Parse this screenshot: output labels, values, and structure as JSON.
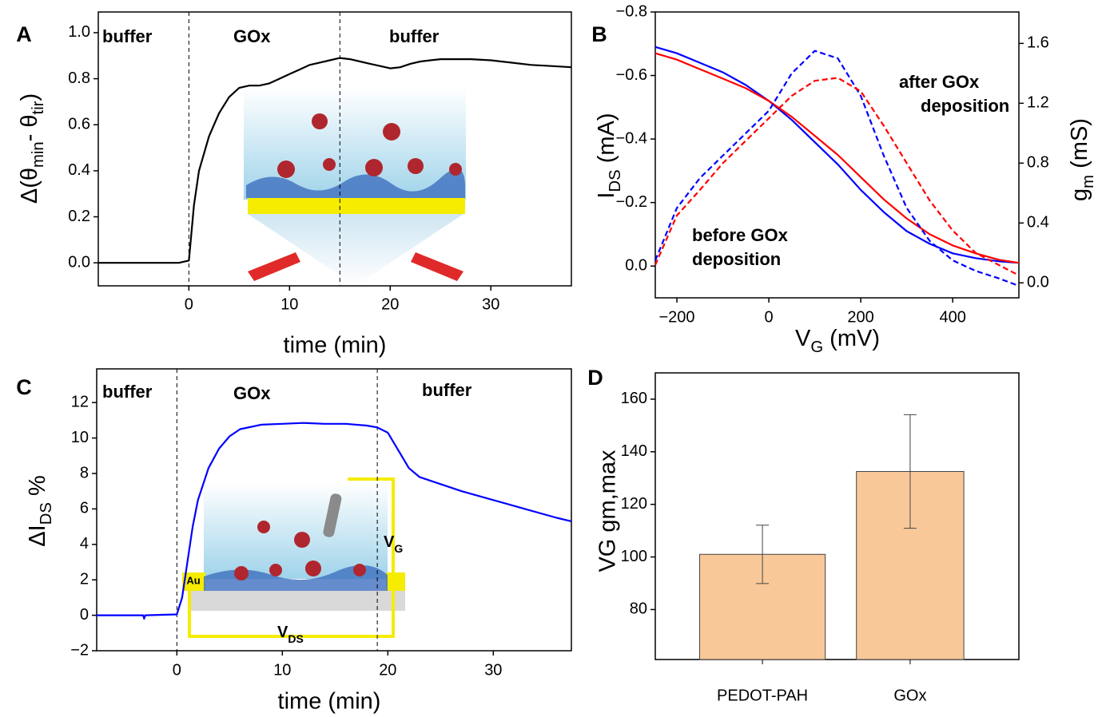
{
  "chart_data": [
    {
      "type": "line",
      "label": "A",
      "xlabel": "time (min)",
      "ylabel": [
        "Δ(θ",
        "min",
        "- θ",
        "tir",
        ")"
      ],
      "x": [
        -9,
        -6,
        -3,
        -1,
        0,
        0.5,
        1,
        2,
        3,
        4,
        5,
        6,
        7,
        8,
        9,
        10,
        11,
        12,
        13,
        14,
        15,
        16,
        17,
        18,
        19,
        20,
        21,
        22,
        23,
        24,
        25,
        26,
        27,
        28,
        30,
        32,
        34,
        36,
        38
      ],
      "series": [
        {
          "color": "#000000",
          "values": [
            0,
            0,
            0,
            0,
            0.01,
            0.25,
            0.4,
            0.55,
            0.65,
            0.72,
            0.76,
            0.77,
            0.77,
            0.78,
            0.8,
            0.82,
            0.84,
            0.86,
            0.87,
            0.88,
            0.89,
            0.885,
            0.875,
            0.865,
            0.855,
            0.845,
            0.85,
            0.865,
            0.875,
            0.88,
            0.885,
            0.885,
            0.885,
            0.885,
            0.88,
            0.87,
            0.86,
            0.855,
            0.85
          ]
        }
      ],
      "xlim": [
        -9,
        38
      ],
      "ylim": [
        -0.1,
        1.09
      ],
      "xticks": [
        0,
        10,
        20,
        30
      ],
      "yticks": [
        {
          "value": 0,
          "label": "0.0"
        },
        {
          "value": 0.2,
          "label": "0.2"
        },
        {
          "value": 0.4,
          "label": "0.4"
        },
        {
          "value": 0.6,
          "label": "0.6"
        },
        {
          "value": 0.8,
          "label": "0.8"
        },
        {
          "value": 1,
          "label": "1.0"
        }
      ],
      "vlines": [
        0,
        15
      ],
      "annotations": [
        "buffer",
        "GOx",
        "buffer"
      ]
    },
    {
      "type": "line",
      "label": "B",
      "xlabel": [
        "V",
        "G",
        " (mV)"
      ],
      "ylabel": [
        "I",
        "DS",
        " (mA)"
      ],
      "y2label": [
        "g",
        "m",
        " (mS)"
      ],
      "x": [
        -247,
        -200,
        -150,
        -100,
        -50,
        0,
        50,
        100,
        150,
        200,
        250,
        300,
        350,
        400,
        450,
        500,
        544
      ],
      "series": [
        {
          "color": "#0000ff",
          "values": [
            -0.69,
            -0.67,
            -0.64,
            -0.61,
            -0.57,
            -0.52,
            -0.46,
            -0.39,
            -0.32,
            -0.24,
            -0.17,
            -0.11,
            -0.07,
            -0.04,
            -0.025,
            -0.015,
            -0.01
          ]
        },
        {
          "color": "#ff0000",
          "values": [
            -0.67,
            -0.65,
            -0.62,
            -0.59,
            -0.56,
            -0.52,
            -0.47,
            -0.41,
            -0.35,
            -0.28,
            -0.21,
            -0.15,
            -0.1,
            -0.065,
            -0.04,
            -0.02,
            -0.01
          ]
        },
        {
          "color": "#0000ff",
          "dashed": true,
          "axis": "y2",
          "values": [
            0.15,
            0.5,
            0.7,
            0.85,
            1.0,
            1.15,
            1.4,
            1.55,
            1.5,
            1.25,
            0.85,
            0.5,
            0.28,
            0.15,
            0.08,
            0.03,
            -0.02
          ]
        },
        {
          "color": "#ff0000",
          "dashed": true,
          "axis": "y2",
          "values": [
            0.12,
            0.45,
            0.62,
            0.8,
            0.95,
            1.1,
            1.25,
            1.35,
            1.37,
            1.28,
            1.05,
            0.8,
            0.55,
            0.35,
            0.2,
            0.12,
            0.05
          ]
        }
      ],
      "xlim": [
        -247,
        544
      ],
      "ylim": [
        -0.8,
        0.1
      ],
      "y_inverted": true,
      "y2lim": [
        -0.1,
        1.81
      ],
      "xticks": [
        {
          "value": -200,
          "label": "−200"
        },
        0,
        200,
        400
      ],
      "yticks": [
        {
          "value": -0.8,
          "label": "−0.8"
        },
        {
          "value": -0.6,
          "label": "−0.6"
        },
        {
          "value": -0.4,
          "label": "−0.4"
        },
        {
          "value": -0.2,
          "label": "−0.2"
        },
        {
          "value": 0,
          "label": "0.0"
        }
      ],
      "y2ticks": [
        {
          "value": 0,
          "label": "0.0"
        },
        {
          "value": 0.4,
          "label": "0.4"
        },
        {
          "value": 0.8,
          "label": "0.8"
        },
        {
          "value": 1.2,
          "label": "1.2"
        },
        {
          "value": 1.6,
          "label": "1.6"
        }
      ],
      "annotations": [
        "after GOx",
        "deposition",
        "before GOx",
        "deposition"
      ]
    },
    {
      "type": "line",
      "label": "C",
      "xlabel": "time (min)",
      "ylabel": [
        "ΔI",
        "DS",
        " %"
      ],
      "x": [
        -7.6,
        -5,
        -3.2,
        -3.1,
        -3,
        0,
        0.5,
        1,
        1.5,
        2,
        3,
        4,
        5,
        6,
        8,
        10,
        12,
        14,
        16,
        18,
        19,
        20,
        21,
        22,
        23,
        25,
        27,
        30,
        33,
        36,
        37.4
      ],
      "series": [
        {
          "color": "#0000ff",
          "values": [
            0,
            0,
            0,
            -0.2,
            0,
            0.05,
            1,
            3,
            5,
            6.5,
            8.3,
            9.4,
            10.1,
            10.5,
            10.75,
            10.8,
            10.85,
            10.8,
            10.8,
            10.7,
            10.6,
            10.3,
            9.3,
            8.3,
            7.8,
            7.4,
            7.0,
            6.5,
            6.0,
            5.5,
            5.3
          ]
        }
      ],
      "xlim": [
        -7.6,
        37.4
      ],
      "ylim": [
        -2,
        13.9
      ],
      "xticks": [
        0,
        10,
        20,
        30
      ],
      "yticks": [
        {
          "value": -2,
          "label": "−2"
        },
        0,
        2,
        4,
        6,
        8,
        10,
        12
      ],
      "vlines": [
        0,
        19
      ],
      "annotations": [
        "buffer",
        "GOx",
        "buffer"
      ],
      "inset_texts": {
        "au": "Au",
        "vg": [
          "V",
          "G"
        ],
        "vds": [
          "V",
          "DS"
        ]
      }
    },
    {
      "type": "bar",
      "label": "D",
      "ylabel": "VG gm,max",
      "categories": [
        "PEDOT-PAH",
        "GOx"
      ],
      "values": [
        101,
        132.5
      ],
      "errors": [
        11.1,
        21.6
      ],
      "color": "#f9c898",
      "ylim": [
        61,
        170
      ],
      "yticks": [
        80,
        100,
        120,
        140,
        160
      ]
    }
  ]
}
